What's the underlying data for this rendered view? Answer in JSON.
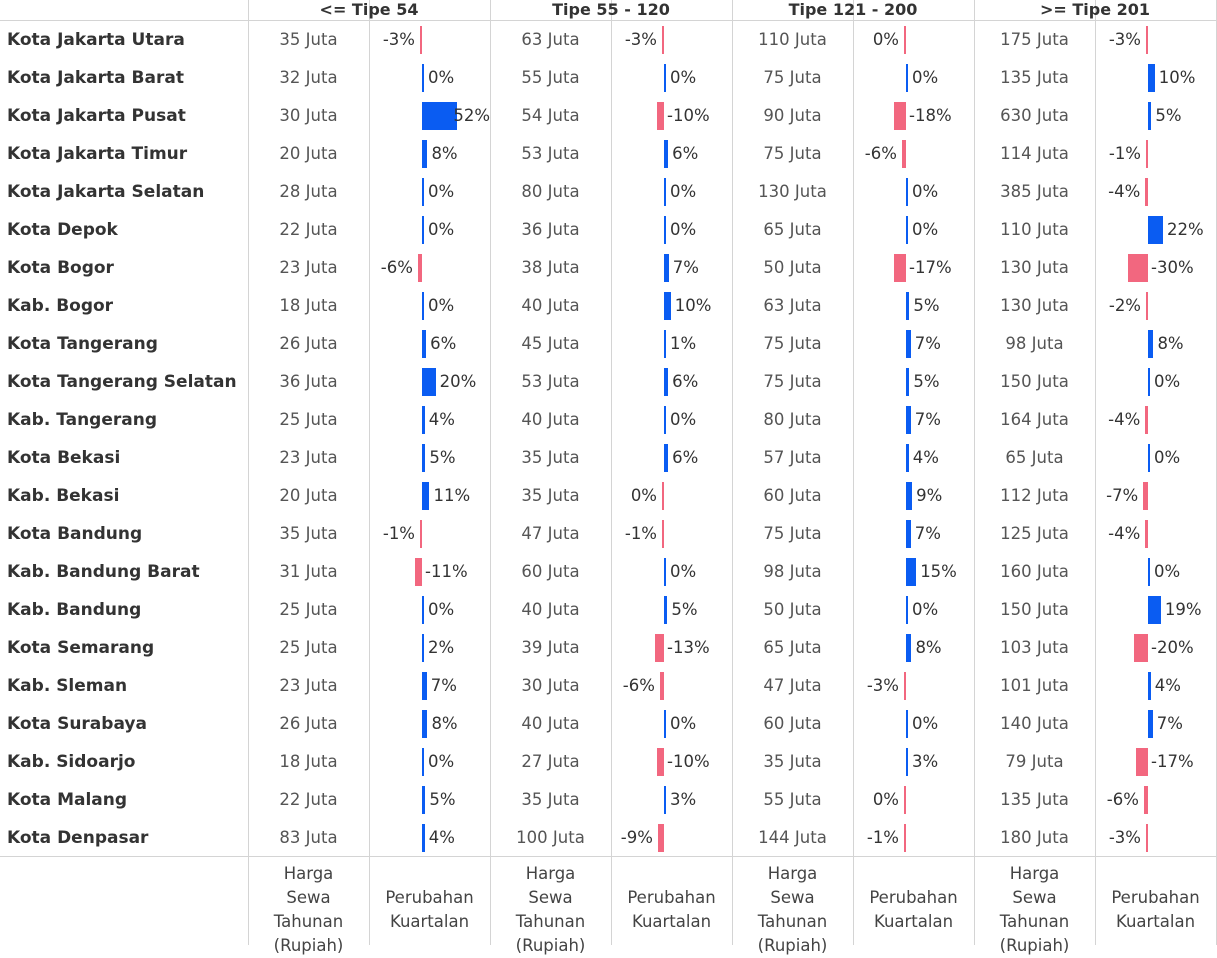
{
  "chart_data": {
    "type": "table",
    "groups": [
      "<= Tipe 54",
      "Tipe 55 - 120",
      "Tipe 121 - 200",
      ">= Tipe 201"
    ],
    "measures": [
      "Harga Sewa Tahunan (Rupiah)",
      "Perubahan Kuartalan"
    ],
    "footer": {
      "price_label": "Harga Sewa Tahunan (Rupiah)",
      "change_label": "Perubahan Kuartalan"
    },
    "price_unit": "Juta",
    "colors": {
      "positive": "#0a5cf2",
      "negative": "#f2677f"
    },
    "rows": [
      {
        "region": "Kota Jakarta Utara",
        "price": [
          35,
          63,
          110,
          175
        ],
        "change": [
          -3,
          -3,
          -0.4,
          -3
        ]
      },
      {
        "region": "Kota Jakarta Barat",
        "price": [
          32,
          55,
          75,
          135
        ],
        "change": [
          0,
          0,
          0,
          10
        ]
      },
      {
        "region": "Kota Jakarta Pusat",
        "price": [
          30,
          54,
          90,
          630
        ],
        "change": [
          52,
          -10,
          -18,
          5
        ]
      },
      {
        "region": "Kota Jakarta Timur",
        "price": [
          20,
          53,
          75,
          114
        ],
        "change": [
          8,
          6,
          -6,
          -1
        ]
      },
      {
        "region": "Kota Jakarta Selatan",
        "price": [
          28,
          80,
          130,
          385
        ],
        "change": [
          0,
          0,
          0,
          -4
        ]
      },
      {
        "region": "Kota Depok",
        "price": [
          22,
          36,
          65,
          110
        ],
        "change": [
          0,
          0,
          0,
          22
        ]
      },
      {
        "region": "Kota Bogor",
        "price": [
          23,
          38,
          50,
          130
        ],
        "change": [
          -6,
          7,
          -17,
          -30
        ]
      },
      {
        "region": "Kab. Bogor",
        "price": [
          18,
          40,
          63,
          130
        ],
        "change": [
          0,
          10,
          5,
          -2
        ]
      },
      {
        "region": "Kota Tangerang",
        "price": [
          26,
          45,
          75,
          98
        ],
        "change": [
          6,
          1,
          7,
          8
        ]
      },
      {
        "region": "Kota Tangerang Selatan",
        "price": [
          36,
          53,
          75,
          150
        ],
        "change": [
          20,
          6,
          5,
          0
        ]
      },
      {
        "region": "Kab. Tangerang",
        "price": [
          25,
          40,
          80,
          164
        ],
        "change": [
          4,
          0,
          7,
          -4
        ]
      },
      {
        "region": "Kota Bekasi",
        "price": [
          23,
          35,
          57,
          65
        ],
        "change": [
          5,
          6,
          4,
          0
        ]
      },
      {
        "region": "Kab. Bekasi",
        "price": [
          20,
          35,
          60,
          112
        ],
        "change": [
          11,
          -0.4,
          9,
          -7
        ]
      },
      {
        "region": "Kota Bandung",
        "price": [
          35,
          47,
          75,
          125
        ],
        "change": [
          -1,
          -1,
          7,
          -4
        ]
      },
      {
        "region": "Kab. Bandung Barat",
        "price": [
          31,
          60,
          98,
          160
        ],
        "change": [
          -11,
          0,
          15,
          0
        ]
      },
      {
        "region": "Kab. Bandung",
        "price": [
          25,
          40,
          50,
          150
        ],
        "change": [
          0,
          5,
          0,
          19
        ]
      },
      {
        "region": "Kota Semarang",
        "price": [
          25,
          39,
          65,
          103
        ],
        "change": [
          2,
          -13,
          8,
          -20
        ]
      },
      {
        "region": "Kab. Sleman",
        "price": [
          23,
          30,
          47,
          101
        ],
        "change": [
          7,
          -6,
          -3,
          4
        ]
      },
      {
        "region": "Kota Surabaya",
        "price": [
          26,
          40,
          60,
          140
        ],
        "change": [
          8,
          0,
          0,
          7
        ]
      },
      {
        "region": "Kab. Sidoarjo",
        "price": [
          18,
          27,
          35,
          79
        ],
        "change": [
          0,
          -10,
          3,
          -17
        ]
      },
      {
        "region": "Kota Malang",
        "price": [
          22,
          35,
          55,
          135
        ],
        "change": [
          5,
          3,
          -0.4,
          -6
        ]
      },
      {
        "region": "Kota Denpasar",
        "price": [
          83,
          100,
          144,
          180
        ],
        "change": [
          4,
          -9,
          -1,
          -3
        ]
      }
    ]
  }
}
